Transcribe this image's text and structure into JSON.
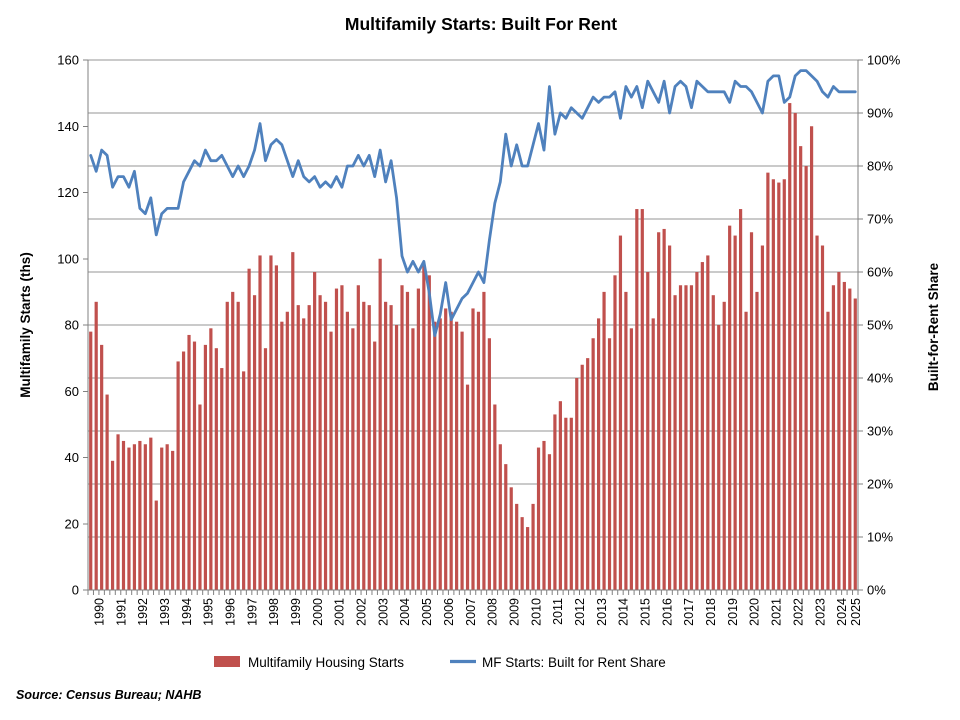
{
  "source_note": "Source: Census Bureau; NAHB",
  "chart_data": {
    "type": "combo-bar-line",
    "title": "Multifamily Starts: Built For Rent",
    "frequency": "quarterly",
    "x_start": "1990Q1",
    "x_end": "2025Q1",
    "x_year_labels": [
      "1990",
      "1991",
      "1992",
      "1993",
      "1994",
      "1995",
      "1996",
      "1997",
      "1998",
      "1999",
      "2000",
      "2001",
      "2002",
      "2003",
      "2004",
      "2005",
      "2006",
      "2007",
      "2008",
      "2009",
      "2010",
      "2011",
      "2012",
      "2013",
      "2014",
      "2015",
      "2016",
      "2017",
      "2018",
      "2019",
      "2020",
      "2021",
      "2022",
      "2023",
      "2024",
      "2025"
    ],
    "ylabel_left": "Multifamily Starts (ths)",
    "ylabel_right": "Built-for-Rent Share",
    "ylim_left": [
      0,
      160
    ],
    "ylim_right": [
      0,
      100
    ],
    "yticks_left": [
      "0",
      "20",
      "40",
      "60",
      "80",
      "100",
      "120",
      "140",
      "160"
    ],
    "yticks_right": [
      "0%",
      "10%",
      "20%",
      "30%",
      "40%",
      "50%",
      "60%",
      "70%",
      "80%",
      "90%",
      "100%"
    ],
    "grid": "horizontal-every-10pct",
    "gridline_color": "#969696",
    "axis_color": "#808080",
    "legend_position": "bottom",
    "series": [
      {
        "name": "Multifamily Housing Starts",
        "type": "bar",
        "axis": "left",
        "color": "#C0504D",
        "values": [
          78,
          87,
          74,
          59,
          39,
          47,
          45,
          43,
          44,
          45,
          44,
          46,
          27,
          43,
          44,
          42,
          69,
          72,
          77,
          75,
          56,
          74,
          79,
          73,
          67,
          87,
          90,
          87,
          66,
          97,
          89,
          101,
          73,
          101,
          98,
          81,
          84,
          102,
          86,
          82,
          86,
          96,
          89,
          87,
          78,
          91,
          92,
          84,
          79,
          92,
          87,
          86,
          75,
          100,
          87,
          86,
          80,
          92,
          90,
          79,
          91,
          98,
          95,
          81,
          82,
          85,
          84,
          81,
          78,
          62,
          85,
          84,
          90,
          76,
          56,
          44,
          38,
          31,
          26,
          22,
          19,
          26,
          43,
          45,
          41,
          53,
          57,
          52,
          52,
          64,
          68,
          70,
          76,
          82,
          90,
          76,
          95,
          107,
          90,
          79,
          115,
          115,
          96,
          82,
          108,
          109,
          104,
          89,
          92,
          92,
          92,
          96,
          99,
          101,
          89,
          80,
          87,
          110,
          107,
          115,
          84,
          108,
          90,
          104,
          126,
          124,
          123,
          124,
          147,
          144,
          134,
          128,
          140,
          107,
          104,
          84,
          92,
          96,
          93,
          91,
          88
        ]
      },
      {
        "name": "MF Starts: Built for Rent Share",
        "type": "line",
        "axis": "right",
        "color": "#4F81BD",
        "values": [
          82,
          79,
          83,
          82,
          76,
          78,
          78,
          76,
          79,
          72,
          71,
          74,
          67,
          71,
          72,
          72,
          72,
          77,
          79,
          81,
          80,
          83,
          81,
          81,
          82,
          80,
          78,
          80,
          78,
          80,
          83,
          88,
          81,
          84,
          85,
          84,
          81,
          78,
          81,
          78,
          77,
          78,
          76,
          77,
          76,
          78,
          76,
          80,
          80,
          82,
          80,
          82,
          78,
          83,
          77,
          81,
          74,
          63,
          60,
          62,
          60,
          62,
          56,
          48,
          52,
          58,
          51,
          53,
          55,
          56,
          58,
          60,
          58,
          66,
          73,
          77,
          86,
          80,
          84,
          80,
          80,
          84,
          88,
          83,
          95,
          86,
          90,
          89,
          91,
          90,
          89,
          91,
          93,
          92,
          93,
          93,
          94,
          89,
          95,
          93,
          95,
          91,
          96,
          94,
          92,
          96,
          90,
          95,
          96,
          95,
          91,
          96,
          95,
          94,
          94,
          94,
          94,
          92,
          96,
          95,
          95,
          94,
          92,
          90,
          96,
          97,
          97,
          92,
          93,
          97,
          98,
          98,
          97,
          96,
          94,
          93,
          95,
          94,
          94,
          94,
          94
        ]
      }
    ]
  }
}
